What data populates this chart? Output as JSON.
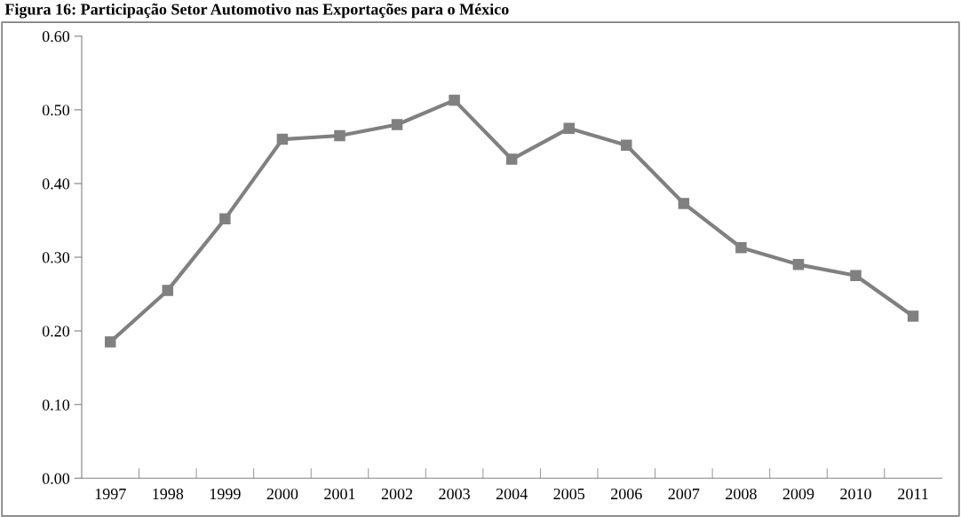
{
  "chart_data": {
    "type": "line",
    "title": "Figura 16: Participação Setor Automotivo nas Exportações para o México",
    "categories": [
      "1997",
      "1998",
      "1999",
      "2000",
      "2001",
      "2002",
      "2003",
      "2004",
      "2005",
      "2006",
      "2007",
      "2008",
      "2009",
      "2010",
      "2011"
    ],
    "series": [
      {
        "color": "#808080",
        "values": [
          0.185,
          0.255,
          0.352,
          0.46,
          0.465,
          0.48,
          0.513,
          0.433,
          0.475,
          0.452,
          0.373,
          0.313,
          0.29,
          0.275,
          0.22
        ]
      }
    ],
    "ylim": [
      0,
      0.6
    ],
    "yticks": [
      {
        "value": 0,
        "label": "0.00"
      },
      {
        "value": 0.1,
        "label": "0.10"
      },
      {
        "value": 0.2,
        "label": "0.20"
      },
      {
        "value": 0.3,
        "label": "0.30"
      },
      {
        "value": 0.4,
        "label": "0.40"
      },
      {
        "value": 0.5,
        "label": "0.50"
      },
      {
        "value": 0.6,
        "label": "0.60"
      }
    ],
    "grid": false,
    "legend": false,
    "marker": "square",
    "line_style": "solid"
  }
}
